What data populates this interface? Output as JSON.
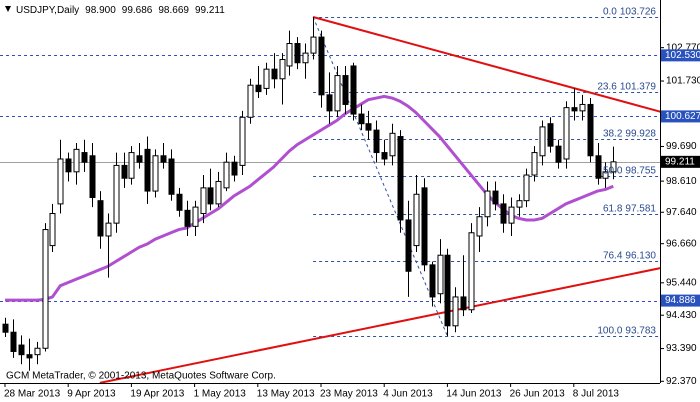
{
  "chart_data": {
    "type": "candlestick",
    "header": {
      "symbol": "USDJPY,Daily",
      "values": [
        "98.900",
        "99.686",
        "98.669",
        "99.211"
      ]
    },
    "footer": "GCM MetaTrader, © 2001-2013, MetaQuotes Software Corp.",
    "categories": [
      "28 Mar 2013",
      null,
      null,
      null,
      null,
      null,
      null,
      null,
      "9 Apr 2013",
      null,
      null,
      null,
      null,
      null,
      null,
      null,
      "19 Apr 2013",
      null,
      null,
      null,
      null,
      null,
      null,
      null,
      "1 May 2013",
      null,
      null,
      null,
      null,
      null,
      null,
      null,
      "13 May 2013",
      null,
      null,
      null,
      null,
      null,
      null,
      null,
      "23 May 2013",
      null,
      null,
      null,
      null,
      null,
      null,
      null,
      "4 Jun 2013",
      null,
      null,
      null,
      null,
      null,
      null,
      null,
      "14 Jun 2013",
      null,
      null,
      null,
      null,
      null,
      null,
      null,
      "26 Jun 2013",
      null,
      null,
      null,
      null,
      null,
      null,
      null,
      "8 Jul 2013",
      null,
      null,
      null,
      null,
      null
    ],
    "open": [
      94.15,
      93.9,
      93.5,
      93.2,
      93.2,
      93.4,
      96.6,
      97.9,
      99.3,
      98.9,
      99.5,
      99.4,
      98.0,
      96.9,
      97.3,
      99.1,
      98.7,
      99.4,
      99.6,
      98.3,
      99.4,
      99.3,
      98.2,
      97.7,
      97.2,
      97.6,
      98.4,
      97.9,
      98.4,
      99.2,
      99.1,
      100.6,
      101.6,
      101.5,
      102.1,
      101.8,
      102.2,
      102.9,
      102.3,
      102.6,
      103.1,
      101.3,
      100.8,
      101.9,
      102.2,
      100.7,
      100.4,
      100.2,
      99.5,
      99.4,
      100.0,
      97.4,
      96.6,
      98.4,
      96.0,
      95.1,
      96.3,
      94.1,
      95.0,
      94.6,
      96.9,
      97.5,
      98.3,
      97.9,
      97.3,
      97.8,
      98.0,
      98.8,
      99.4,
      100.4,
      99.7,
      99.3,
      100.9,
      100.8,
      101.0,
      99.4,
      98.7,
      98.9
    ],
    "high": [
      94.35,
      94.3,
      93.8,
      93.7,
      93.6,
      97.3,
      97.9,
      99.9,
      99.5,
      99.8,
      99.9,
      99.8,
      98.3,
      97.6,
      99.5,
      99.5,
      99.7,
      99.8,
      100.0,
      99.6,
      99.8,
      99.6,
      98.4,
      98.0,
      98.0,
      98.8,
      99.0,
      98.9,
      99.5,
      99.4,
      100.8,
      101.8,
      102.2,
      102.3,
      102.6,
      102.6,
      103.3,
      103.1,
      102.9,
      103.726,
      103.3,
      102.0,
      102.2,
      102.2,
      102.3,
      101.0,
      100.8,
      100.5,
      99.9,
      100.4,
      100.2,
      98.0,
      98.8,
      98.7,
      96.1,
      96.8,
      96.5,
      95.3,
      96.3,
      97.3,
      97.8,
      98.6,
      98.6,
      98.2,
      98.1,
      98.2,
      99.0,
      99.7,
      100.5,
      100.6,
      99.9,
      101.1,
      101.5,
      101.3,
      101.2,
      99.8,
      99.2,
      99.686
    ],
    "low": [
      93.75,
      93.1,
      92.9,
      92.7,
      92.9,
      93.3,
      96.4,
      97.6,
      98.6,
      98.5,
      98.9,
      97.8,
      96.5,
      95.6,
      97.0,
      98.4,
      98.5,
      99.0,
      97.9,
      98.1,
      99.0,
      98.0,
      97.5,
      96.9,
      96.9,
      97.3,
      97.7,
      97.8,
      98.3,
      98.6,
      98.8,
      100.4,
      101.2,
      101.3,
      101.5,
      101.0,
      101.9,
      102.1,
      101.8,
      102.4,
      100.9,
      100.4,
      100.6,
      100.7,
      100.5,
      100.2,
      99.9,
      99.2,
      99.1,
      99.1,
      97.0,
      95.0,
      96.4,
      95.8,
      94.7,
      94.8,
      93.783,
      93.9,
      94.4,
      94.5,
      96.4,
      97.2,
      97.7,
      97.0,
      96.9,
      97.5,
      97.8,
      98.6,
      99.1,
      99.5,
      99.0,
      99.0,
      100.5,
      100.5,
      99.2,
      98.5,
      98.4,
      98.669
    ],
    "close": [
      93.9,
      93.3,
      93.2,
      93.1,
      93.4,
      97.1,
      97.6,
      99.3,
      98.9,
      99.6,
      99.2,
      98.1,
      96.9,
      97.3,
      99.1,
      98.7,
      99.5,
      99.2,
      98.3,
      99.4,
      99.2,
      98.2,
      97.7,
      97.2,
      97.8,
      98.4,
      97.9,
      98.6,
      99.2,
      98.8,
      100.6,
      101.6,
      101.4,
      102.1,
      101.8,
      102.4,
      102.9,
      102.3,
      102.6,
      103.1,
      101.3,
      100.8,
      101.9,
      101.0,
      100.7,
      100.4,
      100.2,
      99.5,
      99.3,
      100.1,
      97.4,
      95.8,
      98.2,
      96.0,
      95.0,
      96.3,
      94.1,
      95.0,
      94.6,
      97.0,
      97.5,
      98.3,
      97.9,
      97.3,
      97.8,
      98.0,
      98.8,
      99.5,
      100.3,
      99.7,
      99.2,
      100.9,
      100.8,
      101.0,
      99.4,
      98.7,
      98.9,
      99.211
    ],
    "up_color": "#ffffff",
    "down_color": "#000000",
    "ma": {
      "color": "#b04fd0",
      "values": [
        94.9,
        94.9,
        94.9,
        94.9,
        94.9,
        94.92,
        95.0,
        95.35,
        95.45,
        95.55,
        95.65,
        95.75,
        95.85,
        95.95,
        96.1,
        96.25,
        96.4,
        96.55,
        96.65,
        96.8,
        96.9,
        97.0,
        97.1,
        97.15,
        97.3,
        97.45,
        97.6,
        97.75,
        97.95,
        98.15,
        98.3,
        98.45,
        98.65,
        98.85,
        99.05,
        99.3,
        99.55,
        99.75,
        99.9,
        100.05,
        100.2,
        100.35,
        100.5,
        100.7,
        100.85,
        101.0,
        101.15,
        101.2,
        101.25,
        101.2,
        101.1,
        100.95,
        100.75,
        100.5,
        100.25,
        100.0,
        99.7,
        99.4,
        99.1,
        98.8,
        98.5,
        98.2,
        97.95,
        97.75,
        97.55,
        97.45,
        97.4,
        97.4,
        97.45,
        97.6,
        97.75,
        97.9,
        98.0,
        98.1,
        98.2,
        98.3,
        98.35,
        98.45
      ]
    },
    "trendlines": [
      {
        "color": "#e01010",
        "x": [
          39,
          83
        ],
        "y": [
          103.726,
          100.77
        ]
      },
      {
        "color": "#e01010",
        "x": [
          12,
          83
        ],
        "y": [
          92.32,
          95.9
        ]
      }
    ],
    "fib": {
      "from": 39,
      "to": 56,
      "color": "#3050a0",
      "levels": [
        {
          "level": "0.0",
          "price": {
            "value": 103.726,
            "label": "103.726"
          }
        },
        {
          "level": "23.6",
          "price": {
            "value": 101.379,
            "label": "101.379"
          }
        },
        {
          "level": "38.2",
          "price": {
            "value": 99.928,
            "label": "99.928"
          }
        },
        {
          "level": "50.0",
          "price": {
            "value": 98.755,
            "label": "98.755"
          }
        },
        {
          "level": "61.8",
          "price": {
            "value": 97.581,
            "label": "97.581"
          }
        },
        {
          "level": "76.4",
          "price": {
            "value": 96.13,
            "label": "96.130"
          }
        },
        {
          "level": "100.0",
          "price": {
            "value": 93.783,
            "label": "93.783"
          }
        }
      ]
    },
    "price_lines": [
      {
        "price": {
          "value": 102.53,
          "label": "102.530"
        },
        "color": "#3050c0",
        "tag_color": "#2a52be",
        "style": "dashed"
      },
      {
        "price": 100.627,
        "color": "#3050c0",
        "tag_color": "#2a52be",
        "style": "dashed"
      },
      {
        "price": 99.211,
        "color": "#a0a0a0",
        "tag_color": "#000000",
        "style": "solid"
      },
      {
        "price": 94.886,
        "color": "#3050c0",
        "tag_color": "#2a52be",
        "style": "dashed"
      }
    ],
    "ylim": [
      92.317,
      104.256
    ],
    "yticks": [
      {
        "value": 102.77,
        "label": "102.770"
      },
      {
        "value": 101.73,
        "label": "101.730"
      },
      {
        "value": 99.69,
        "label": "99.690"
      },
      {
        "value": 98.61,
        "label": "98.610"
      },
      {
        "value": 97.64,
        "label": "97.640"
      },
      {
        "value": 96.66,
        "label": "96.660"
      },
      {
        "value": 95.44,
        "label": "95.440"
      },
      {
        "value": 94.43,
        "label": "94.430"
      },
      {
        "value": 93.39,
        "label": "93.390"
      },
      {
        "value": 92.37,
        "label": "92.370"
      }
    ]
  }
}
